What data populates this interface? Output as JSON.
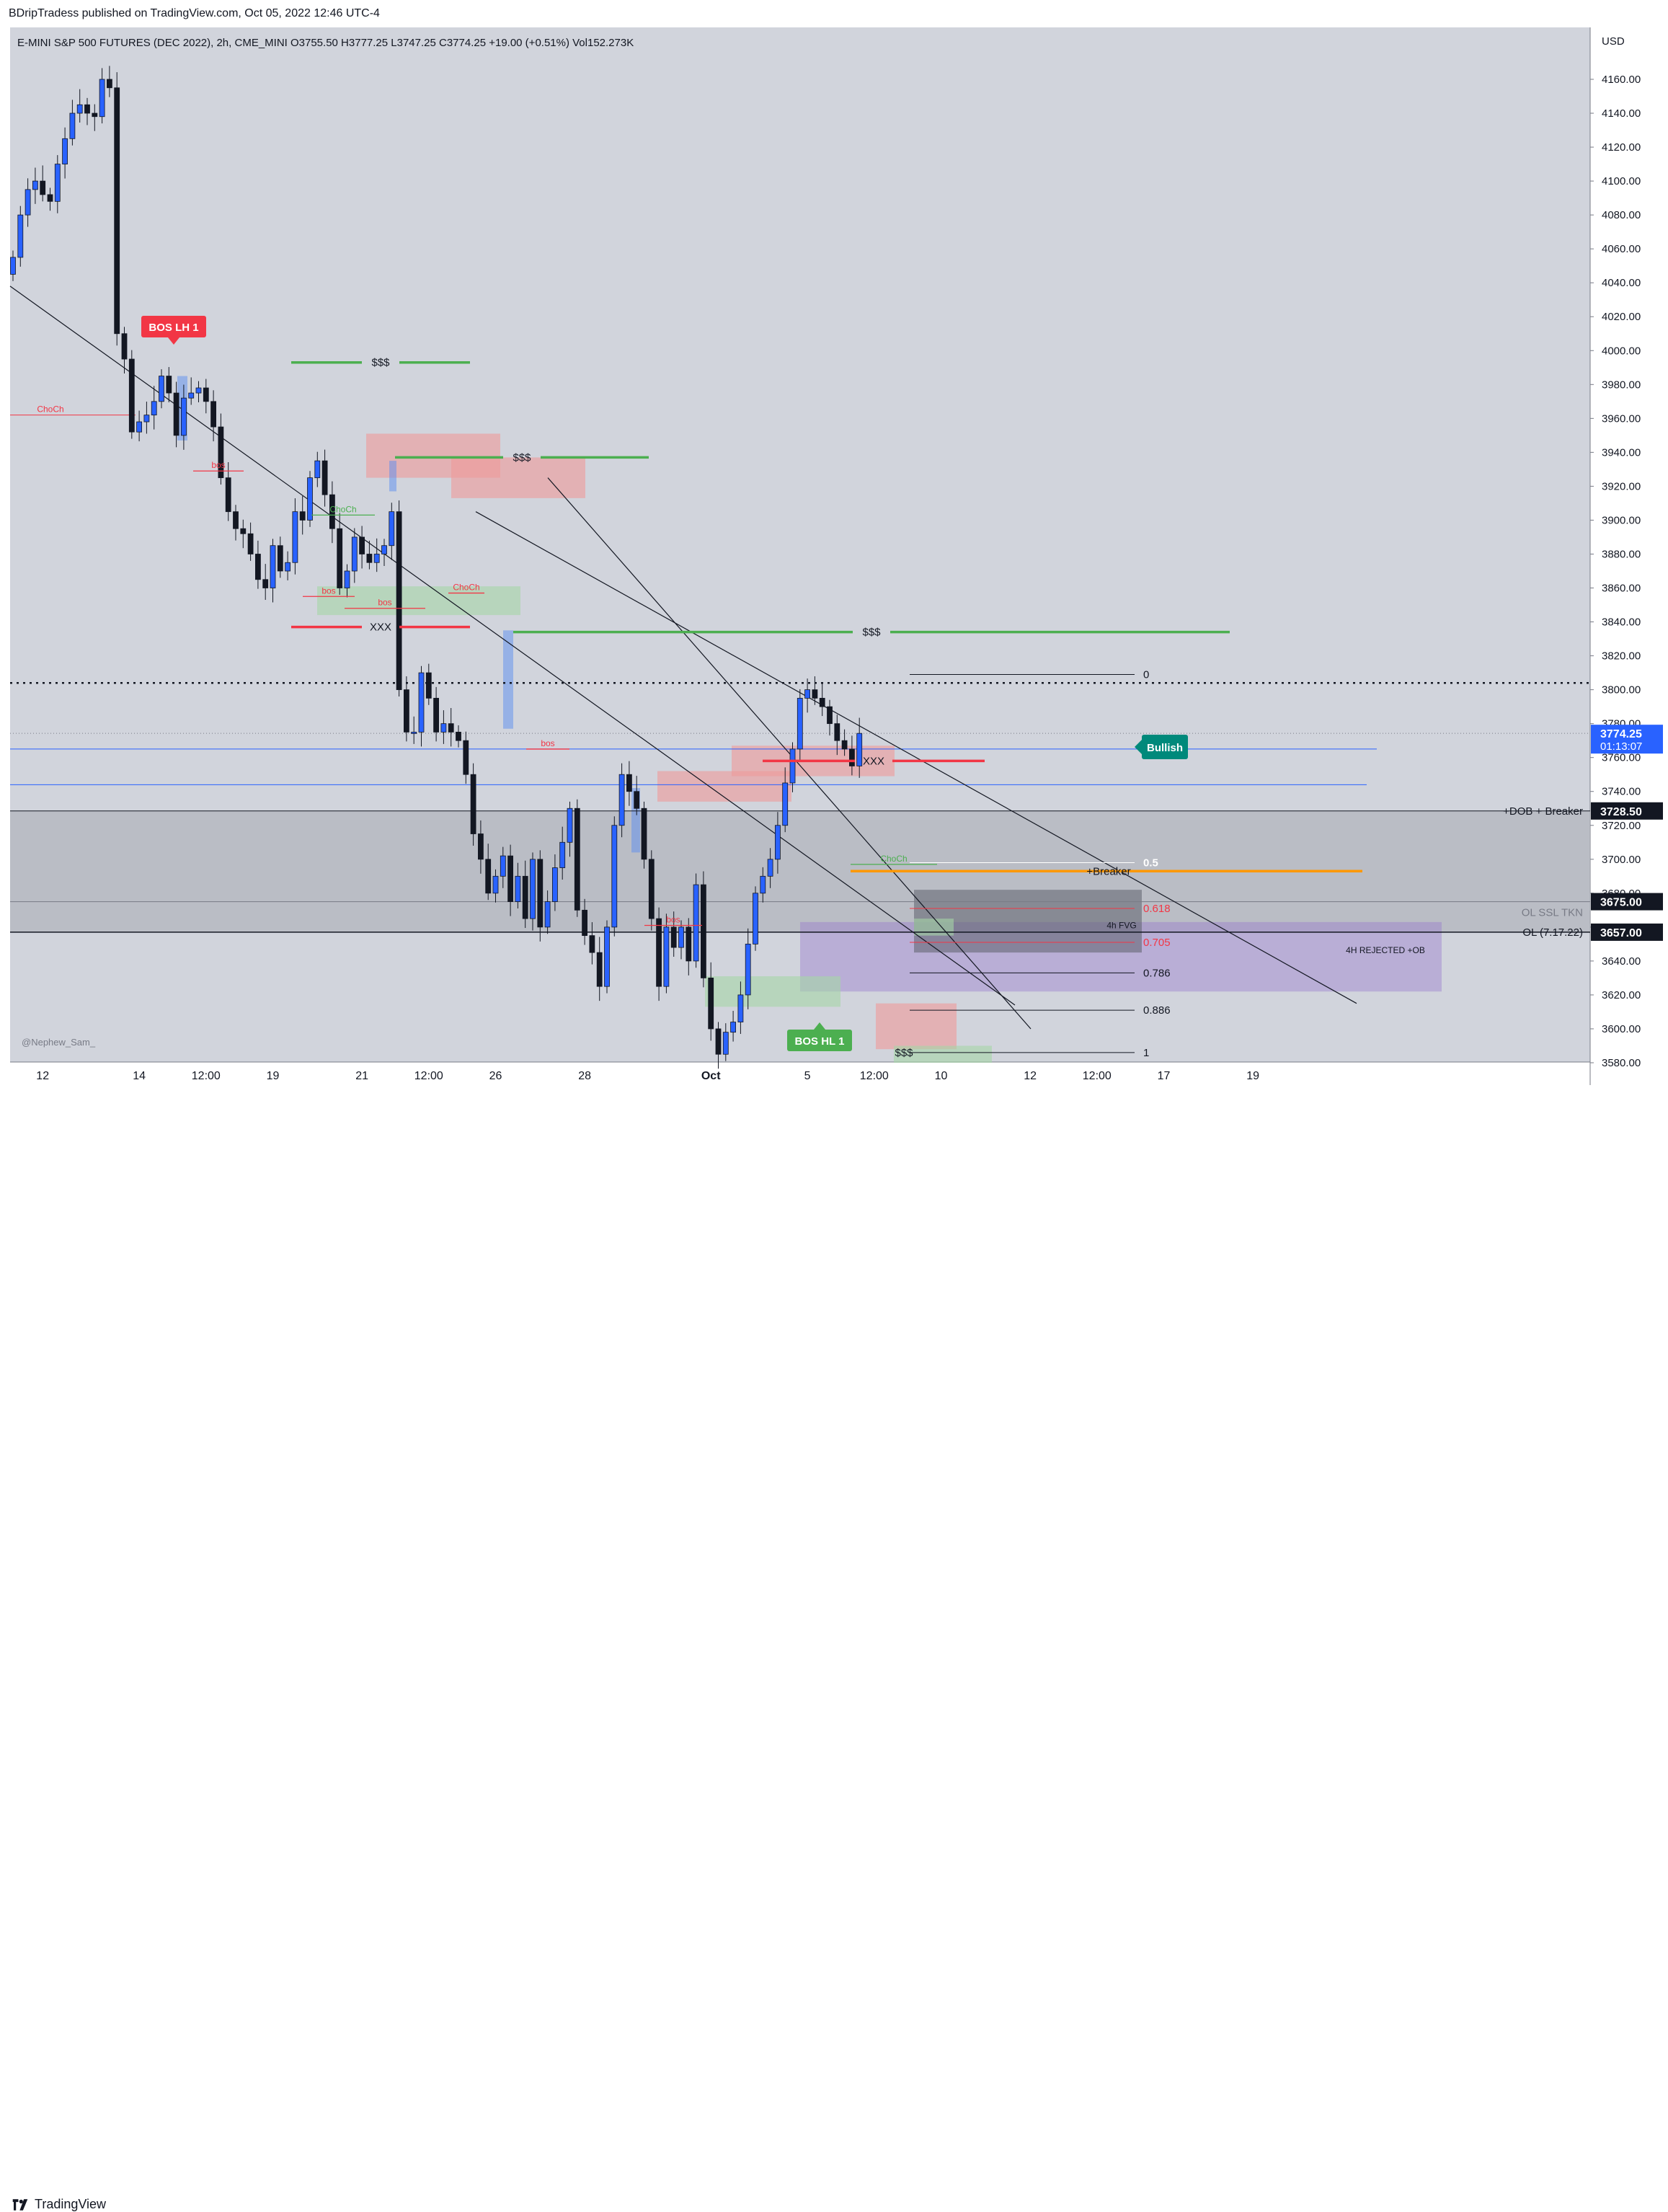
{
  "header": {
    "publisher": "BDripTradess published on TradingView.com, Oct 05, 2022 12:46 UTC-4"
  },
  "footer": {
    "brand": "TradingView"
  },
  "chart_data": {
    "type": "candlestick",
    "symbol_line": "E-MINI S&P 500 FUTURES (DEC 2022), 2h, CME_MINI  O3755.50  H3777.25  L3747.25  C3774.25  +19.00 (+0.51%)  Vol152.273K",
    "currency": "USD",
    "watermark": "@Nephew_Sam_",
    "ylim": [
      3575,
      4185
    ],
    "y_ticks": [
      3580,
      3600,
      3620,
      3640,
      3660,
      3680,
      3700,
      3720,
      3740,
      3760,
      3780,
      3800,
      3820,
      3840,
      3860,
      3880,
      3900,
      3920,
      3940,
      3960,
      3980,
      4000,
      4020,
      4040,
      4060,
      4080,
      4100,
      4120,
      4140,
      4160
    ],
    "x_labels": [
      {
        "i": 4,
        "label": "12"
      },
      {
        "i": 17,
        "label": "14"
      },
      {
        "i": 26,
        "label": "12:00"
      },
      {
        "i": 35,
        "label": "19"
      },
      {
        "i": 47,
        "label": "21"
      },
      {
        "i": 56,
        "label": "12:00"
      },
      {
        "i": 65,
        "label": "26"
      },
      {
        "i": 77,
        "label": "28"
      },
      {
        "i": 94,
        "label": "Oct"
      },
      {
        "i": 107,
        "label": "5"
      },
      {
        "i": 116,
        "label": "12:00"
      },
      {
        "i": 125,
        "label": "10"
      },
      {
        "i": 137,
        "label": "12"
      },
      {
        "i": 146,
        "label": "12:00"
      },
      {
        "i": 155,
        "label": "17"
      },
      {
        "i": 167,
        "label": "19"
      }
    ],
    "price_badges": [
      {
        "price": 3774.25,
        "text": "3774.25",
        "sub": "01:13:07",
        "color": "#2962ff"
      },
      {
        "price": 3728.5,
        "text": "3728.50",
        "color": "#131722"
      },
      {
        "price": 3675.0,
        "text": "3675.00",
        "color": "#131722"
      },
      {
        "price": 3657.0,
        "text": "3657.00",
        "color": "#131722"
      }
    ],
    "closes": [
      4055,
      4080,
      4095,
      4100,
      4092,
      4088,
      4110,
      4125,
      4140,
      4145,
      4140,
      4138,
      4160,
      4155,
      4010,
      3995,
      3952,
      3958,
      3962,
      3970,
      3985,
      3975,
      3950,
      3972,
      3975,
      3978,
      3970,
      3955,
      3925,
      3905,
      3895,
      3892,
      3880,
      3865,
      3860,
      3885,
      3870,
      3875,
      3905,
      3900,
      3925,
      3935,
      3915,
      3895,
      3860,
      3870,
      3890,
      3880,
      3875,
      3880,
      3885,
      3905,
      3800,
      3775,
      3775,
      3810,
      3795,
      3775,
      3780,
      3775,
      3770,
      3750,
      3715,
      3700,
      3680,
      3690,
      3702,
      3675,
      3690,
      3665,
      3700,
      3660,
      3675,
      3695,
      3710,
      3730,
      3670,
      3655,
      3645,
      3625,
      3660,
      3720,
      3750,
      3740,
      3730,
      3700,
      3665,
      3625,
      3660,
      3648,
      3660,
      3640,
      3685,
      3630,
      3600,
      3585,
      3598,
      3604,
      3620,
      3650,
      3680,
      3690,
      3700,
      3720,
      3745,
      3765,
      3795,
      3800,
      3795,
      3790,
      3780,
      3770,
      3765,
      3755,
      3774.25
    ],
    "annotations": [
      {
        "id": "choch-1",
        "text": "ChoCh"
      },
      {
        "id": "bos-1",
        "text": "bos"
      },
      {
        "id": "choch-2",
        "text": "ChoCh"
      },
      {
        "id": "bos-2",
        "text": "bos"
      },
      {
        "id": "bos-3",
        "text": "bos"
      },
      {
        "id": "choch-3",
        "text": "ChoCh"
      },
      {
        "id": "bos-4",
        "text": "bos"
      },
      {
        "id": "choch-4",
        "text": "ChoCh"
      },
      {
        "id": "bos-5",
        "text": "bos"
      },
      {
        "id": "liq-1",
        "text": "$$$"
      },
      {
        "id": "liq-2",
        "text": "$$$"
      },
      {
        "id": "liq-3",
        "text": "$$$"
      },
      {
        "id": "liq-4",
        "text": "$$$"
      },
      {
        "id": "xxx-1",
        "text": "XXX"
      },
      {
        "id": "xxx-2",
        "text": "XXX"
      },
      {
        "id": "dob",
        "text": "+DOB + Breaker"
      },
      {
        "id": "breaker",
        "text": "+Breaker"
      },
      {
        "id": "fvg",
        "text": "4h FVG"
      },
      {
        "id": "rejected",
        "text": "4H REJECTED +OB"
      },
      {
        "id": "olssl",
        "text": "OL SSL TKN"
      },
      {
        "id": "ol",
        "text": "OL (7.17.22)"
      }
    ],
    "fib_levels": [
      {
        "label": "0",
        "price": 3809,
        "color": "#131722"
      },
      {
        "label": "0.5",
        "price": 3698,
        "color": "#ffffff"
      },
      {
        "label": "0.618",
        "price": 3671,
        "color": "#f23645"
      },
      {
        "label": "0.705",
        "price": 3651,
        "color": "#f23645"
      },
      {
        "label": "0.786",
        "price": 3633,
        "color": "#131722"
      },
      {
        "label": "0.886",
        "price": 3611,
        "color": "#131722"
      },
      {
        "label": "1",
        "price": 3586,
        "color": "#131722"
      }
    ],
    "signals": [
      {
        "id": "bos-lh",
        "text": "BOS LH 1",
        "color": "#f23645"
      },
      {
        "id": "bos-hl",
        "text": "BOS HL 1",
        "color": "#4caf50"
      },
      {
        "id": "bullish",
        "text": "Bullish",
        "color": "#00897b"
      }
    ]
  }
}
